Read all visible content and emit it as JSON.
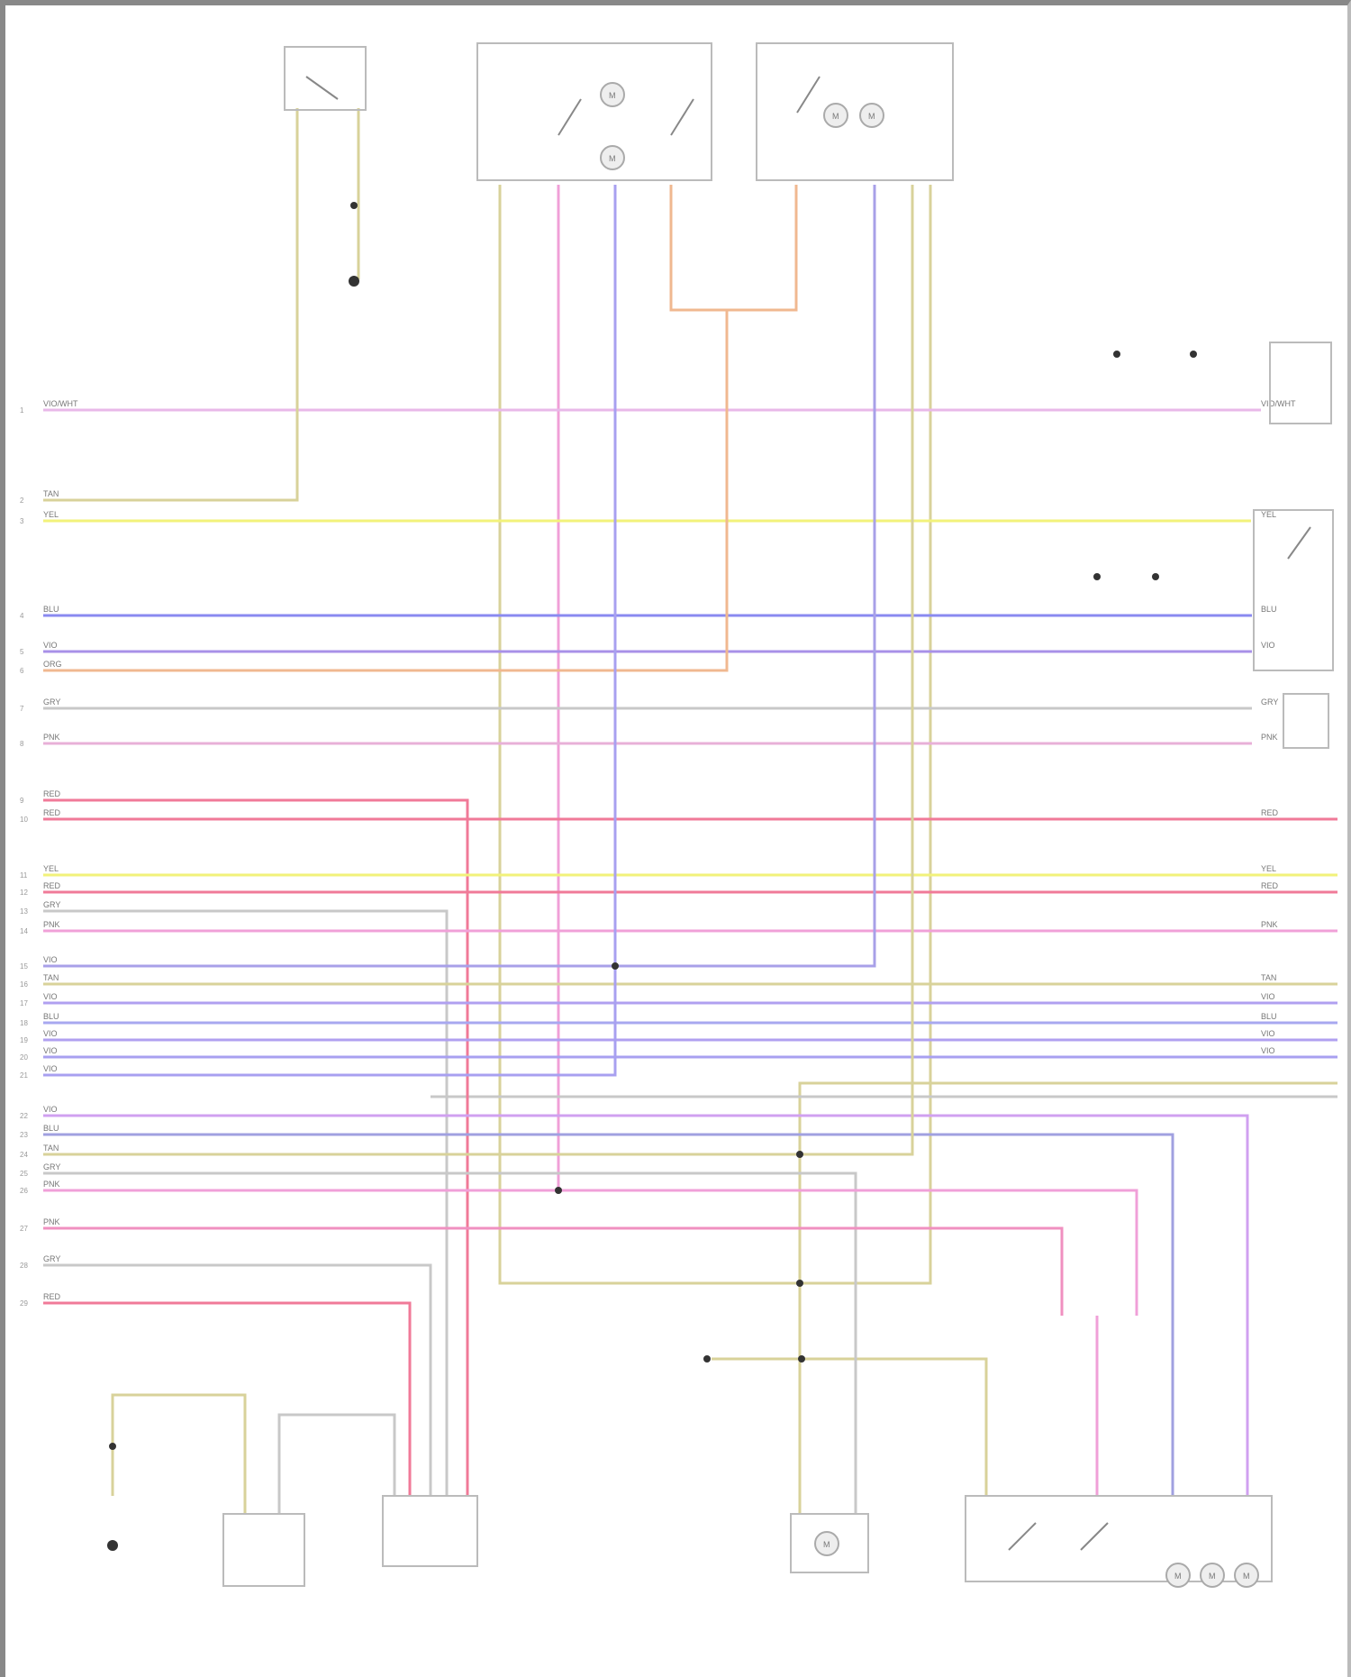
{
  "diagram": {
    "pins": [
      "1",
      "2",
      "3",
      "4",
      "5",
      "6",
      "7",
      "8",
      "9",
      "10",
      "11",
      "12",
      "13",
      "14",
      "15",
      "16",
      "17",
      "18",
      "19",
      "20",
      "21",
      "22",
      "23",
      "24",
      "25",
      "26",
      "27",
      "28",
      "29"
    ],
    "wires": [
      {
        "code": "VIO/WHT",
        "color": "#e8b8e8"
      },
      {
        "code": "TAN",
        "color": "#d8d29a"
      },
      {
        "code": "YEL",
        "color": "#f2f27a"
      },
      {
        "code": "BLU",
        "color": "#8a8af0"
      },
      {
        "code": "VIO",
        "color": "#a890e8"
      },
      {
        "code": "ORG",
        "color": "#f0b890"
      },
      {
        "code": "GRY",
        "color": "#c8c8c8"
      },
      {
        "code": "PNK",
        "color": "#e8b0d8"
      },
      {
        "code": "RED",
        "color": "#f07a98"
      },
      {
        "code": "RED",
        "color": "#f07a98"
      },
      {
        "code": "YEL",
        "color": "#f2f27a"
      },
      {
        "code": "RED",
        "color": "#f07a98"
      },
      {
        "code": "GRY",
        "color": "#c8c8c8"
      },
      {
        "code": "PNK",
        "color": "#f0a0d8"
      },
      {
        "code": "VIO",
        "color": "#a8a0e8"
      },
      {
        "code": "TAN",
        "color": "#d8d29a"
      },
      {
        "code": "VIO",
        "color": "#b0a0f0"
      },
      {
        "code": "BLU",
        "color": "#a8a8f0"
      },
      {
        "code": "VIO",
        "color": "#b0a0f0"
      },
      {
        "code": "VIO",
        "color": "#a8a0f0"
      },
      {
        "code": "VIO",
        "color": "#a8a0f0"
      },
      {
        "code": "VIO",
        "color": "#d0a0f0"
      },
      {
        "code": "BLU",
        "color": "#a0a0e0"
      },
      {
        "code": "TAN",
        "color": "#d8d29a"
      },
      {
        "code": "GRY",
        "color": "#c8c8c8"
      },
      {
        "code": "PNK",
        "color": "#f0a0d8"
      },
      {
        "code": "PNK",
        "color": "#f090c0"
      },
      {
        "code": "GRY",
        "color": "#c8c8c8"
      },
      {
        "code": "RED",
        "color": "#f07a98"
      }
    ],
    "motor_symbol": "M"
  }
}
